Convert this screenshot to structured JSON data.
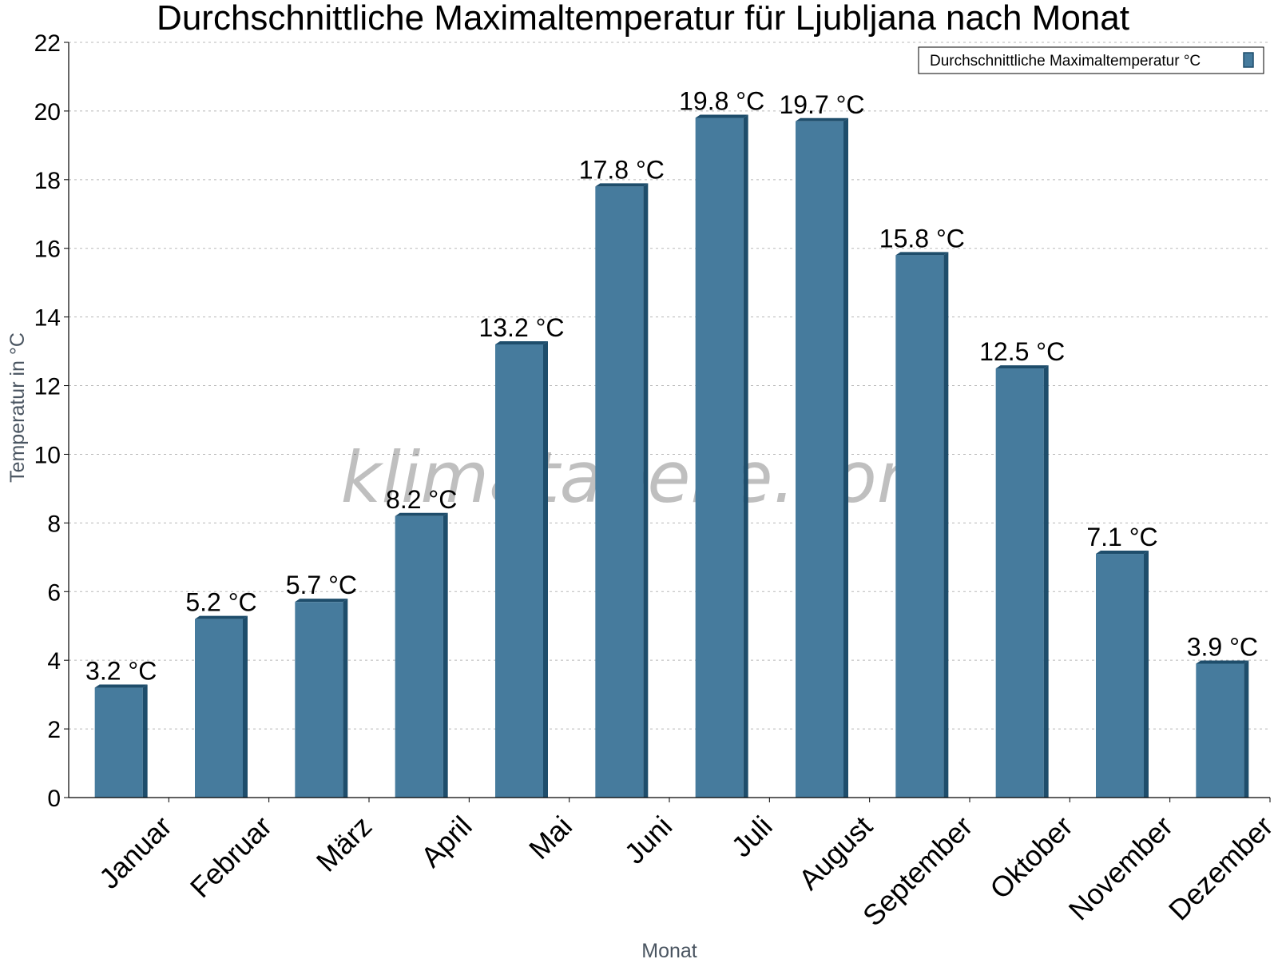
{
  "chart_data": {
    "type": "bar",
    "title": "Durchschnittliche Maximaltemperatur für Ljubljana nach Monat",
    "xlabel": "Monat",
    "ylabel": "Temperatur in °C",
    "categories": [
      "Januar",
      "Februar",
      "März",
      "April",
      "Mai",
      "Juni",
      "Juli",
      "August",
      "September",
      "Oktober",
      "November",
      "Dezember"
    ],
    "series": [
      {
        "name": "Durchschnittliche Maximaltemperatur °C",
        "values": [
          3.2,
          5.2,
          5.7,
          8.2,
          13.2,
          17.8,
          19.8,
          19.7,
          15.8,
          12.5,
          7.1,
          3.9
        ],
        "labels": [
          "3.2 °C",
          "5.2 °C",
          "5.7 °C",
          "8.2 °C",
          "13.2 °C",
          "17.8 °C",
          "19.8 °C",
          "19.7 °C",
          "15.8 °C",
          "12.5 °C",
          "7.1 °C",
          "3.9 °C"
        ]
      }
    ],
    "ylim": [
      0,
      22
    ],
    "yticks": [
      0,
      2,
      4,
      6,
      8,
      10,
      12,
      14,
      16,
      18,
      20,
      22
    ],
    "grid": true,
    "legend_position": "top-right",
    "colors": {
      "bar": "#467b9d",
      "bar_side": "#1e4d6b"
    }
  },
  "watermark": "klimatabelle.com"
}
